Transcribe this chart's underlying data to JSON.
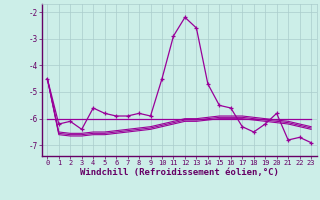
{
  "xlabel": "Windchill (Refroidissement éolien,°C)",
  "background_color": "#cceee8",
  "grid_color": "#aacccc",
  "line_color": "#990099",
  "spine_color": "#660066",
  "tick_color": "#660066",
  "label_color": "#660066",
  "hours": [
    0,
    1,
    2,
    3,
    4,
    5,
    6,
    7,
    8,
    9,
    10,
    11,
    12,
    13,
    14,
    15,
    16,
    17,
    18,
    19,
    20,
    21,
    22,
    23
  ],
  "series1": [
    -4.5,
    -6.2,
    -6.1,
    -6.4,
    -5.6,
    -5.8,
    -5.9,
    -5.9,
    -5.8,
    -5.9,
    -4.5,
    -2.9,
    -2.2,
    -2.6,
    -4.7,
    -5.5,
    -5.6,
    -6.3,
    -6.5,
    -6.2,
    -5.8,
    -6.8,
    -6.7,
    -6.9
  ],
  "series2": [
    -6.0,
    -6.0,
    -6.0,
    -6.0,
    -6.0,
    -6.0,
    -6.0,
    -6.0,
    -6.0,
    -6.0,
    -6.0,
    -6.0,
    -6.0,
    -6.0,
    -6.0,
    -6.0,
    -6.0,
    -6.0,
    -6.0,
    -6.0,
    -6.0,
    -6.0,
    -6.0,
    -6.0
  ],
  "series3": [
    -4.5,
    -6.5,
    -6.55,
    -6.55,
    -6.5,
    -6.5,
    -6.45,
    -6.4,
    -6.35,
    -6.3,
    -6.2,
    -6.1,
    -6.0,
    -6.0,
    -5.95,
    -5.9,
    -5.9,
    -5.9,
    -5.95,
    -6.0,
    -6.05,
    -6.1,
    -6.2,
    -6.3
  ],
  "series4": [
    -4.5,
    -6.55,
    -6.6,
    -6.6,
    -6.55,
    -6.55,
    -6.5,
    -6.45,
    -6.4,
    -6.35,
    -6.25,
    -6.15,
    -6.05,
    -6.05,
    -6.0,
    -5.95,
    -5.95,
    -5.95,
    -6.0,
    -6.05,
    -6.1,
    -6.15,
    -6.25,
    -6.35
  ],
  "series5": [
    -4.5,
    -6.6,
    -6.65,
    -6.65,
    -6.6,
    -6.6,
    -6.55,
    -6.5,
    -6.45,
    -6.4,
    -6.3,
    -6.2,
    -6.1,
    -6.1,
    -6.05,
    -6.0,
    -6.0,
    -6.0,
    -6.05,
    -6.1,
    -6.15,
    -6.2,
    -6.3,
    -6.4
  ],
  "ylim": [
    -7.4,
    -1.7
  ],
  "yticks": [
    -7,
    -6,
    -5,
    -4,
    -3,
    -2
  ],
  "xlim": [
    -0.5,
    23.5
  ]
}
